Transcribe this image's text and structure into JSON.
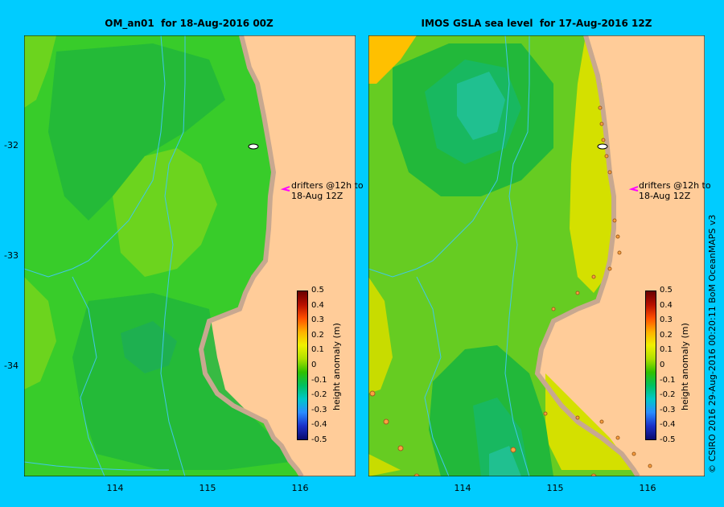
{
  "left_map": {
    "title": "OM_an01  for 18-Aug-2016 00Z",
    "annotation_line1": "drifters @12h to",
    "annotation_line2": "18-Aug 12Z"
  },
  "right_map": {
    "title": "IMOS GSLA sea level  for 17-Aug-2016 12Z",
    "annotation_line1": "drifters @12h to",
    "annotation_line2": "18-Aug 12Z"
  },
  "y_ticks": [
    "-32",
    "-33",
    "-34"
  ],
  "x_ticks": [
    "114",
    "115",
    "116"
  ],
  "colorbar": {
    "label": "height anomaly (m)",
    "ticks": [
      "0.5",
      "0.4",
      "0.3",
      "0.2",
      "0.1",
      "0",
      "-0.1",
      "-0.2",
      "-0.3",
      "-0.4",
      "-0.5"
    ],
    "colors": [
      "#0a0a6e",
      "#1a30c8",
      "#2a8cff",
      "#00c8c8",
      "#00c060",
      "#30c000",
      "#b0e000",
      "#f0f000",
      "#ffb000",
      "#ff5000",
      "#b81000",
      "#6a0000"
    ]
  },
  "credit": "© CSIRO 2016   29-Aug-2016 00:20:11 BoM OceanMAPS v3",
  "colors": {
    "frame": "#00ccff",
    "land": "#ffcc99",
    "beach": "#c8a890",
    "green": "#33cc33"
  }
}
